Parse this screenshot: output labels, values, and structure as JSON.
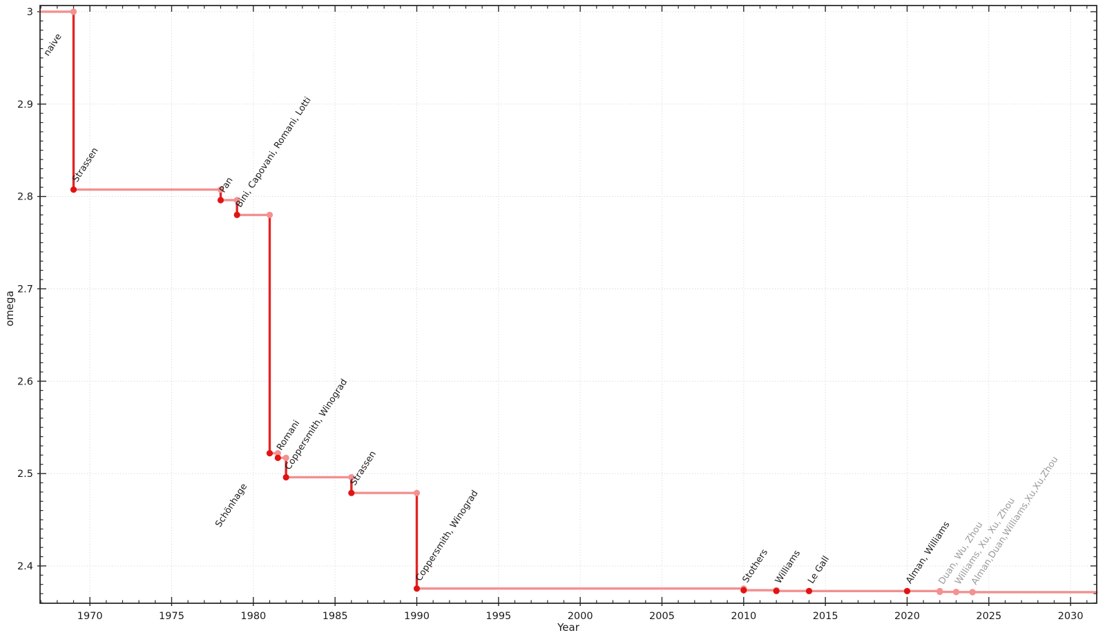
{
  "chart_data": {
    "type": "line",
    "variant": "step-post",
    "title": "",
    "xlabel": "Year",
    "ylabel": "omega",
    "xlim": [
      1966.95,
      2031.6
    ],
    "ylim": [
      2.3596,
      3.0067
    ],
    "x_ticks": [
      1970,
      1975,
      1980,
      1985,
      1990,
      1995,
      2000,
      2005,
      2010,
      2015,
      2020,
      2025,
      2030
    ],
    "x_tick_labels": [
      "1970",
      "1975",
      "1980",
      "1985",
      "1990",
      "1995",
      "2000",
      "2005",
      "2010",
      "2015",
      "2020",
      "2025",
      "2030"
    ],
    "y_ticks": [
      2.4,
      2.5,
      2.6,
      2.7,
      2.8,
      2.9,
      3
    ],
    "y_tick_labels": [
      "2.4",
      "2.5",
      "2.6",
      "2.7",
      "2.8",
      "2.9",
      "3"
    ],
    "x_minor_step": 1,
    "y_minor_step": 0.01,
    "grid": "dotted-at-major-ticks",
    "legend": "none",
    "start": {
      "year": 1966.95,
      "omega": 3,
      "label": "naive"
    },
    "points": [
      {
        "year": 1969,
        "omega": 2.8074,
        "label": "Strassen",
        "recent": false
      },
      {
        "year": 1978,
        "omega": 2.796,
        "label": "Pan",
        "recent": false
      },
      {
        "year": 1979,
        "omega": 2.78,
        "label": "Bini, Capovani, Romani, Lotti",
        "recent": false
      },
      {
        "year": 1981,
        "omega": 2.522,
        "label": "Schönhage",
        "recent": false
      },
      {
        "year": 1981.5,
        "omega": 2.517,
        "label": "Romani",
        "recent": false
      },
      {
        "year": 1982,
        "omega": 2.496,
        "label": "Coppersmith, Winograd",
        "recent": false
      },
      {
        "year": 1986,
        "omega": 2.479,
        "label": "Strassen",
        "recent": false
      },
      {
        "year": 1990,
        "omega": 2.3755,
        "label": "Coppersmith, Winograd",
        "recent": false
      },
      {
        "year": 2010,
        "omega": 2.3737,
        "label": "Stothers",
        "recent": false
      },
      {
        "year": 2012,
        "omega": 2.3729,
        "label": "Williams",
        "recent": false
      },
      {
        "year": 2014,
        "omega": 2.3728,
        "label": "Le Gall",
        "recent": false
      },
      {
        "year": 2020,
        "omega": 2.3728,
        "label": "Alman, Williams",
        "recent": false
      },
      {
        "year": 2022,
        "omega": 2.3719,
        "label": "Duan, Wu, Zhou",
        "recent": true
      },
      {
        "year": 2023,
        "omega": 2.3717,
        "label": "Williams, Xu, Xu, Zhou",
        "recent": true
      },
      {
        "year": 2024,
        "omega": 2.3716,
        "label": "Alman,Duan,Williams,Xu,Xu,Zhou",
        "recent": true
      }
    ],
    "colors": {
      "step_vertical": "#e02525",
      "step_horizontal": "#f29090",
      "dot_established": "#e11414",
      "dot_recent": "#f49191",
      "label_established": "#1a1a1a",
      "label_recent": "#9a9a9a",
      "grid": "#d8d8d8",
      "axis": "#262626"
    }
  }
}
